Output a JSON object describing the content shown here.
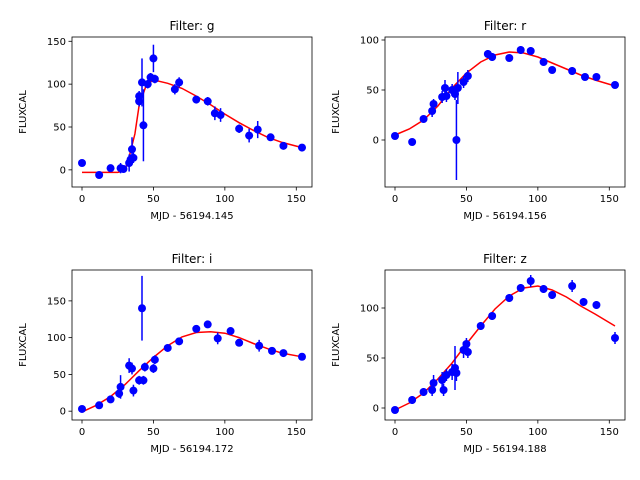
{
  "chart_data": [
    {
      "type": "scatter",
      "title": "Filter: g",
      "xlabel": "MJD - 56194.145",
      "ylabel": "FLUXCAL",
      "xlim": [
        -7,
        161
      ],
      "ylim": [
        -20,
        155
      ],
      "xticks": [
        0,
        50,
        100,
        150
      ],
      "yticks": [
        0,
        50,
        100,
        150
      ],
      "points": [
        {
          "x": 0,
          "y": 8,
          "err": 2
        },
        {
          "x": 12,
          "y": -6,
          "err": 2
        },
        {
          "x": 20,
          "y": 2,
          "err": 2
        },
        {
          "x": 27,
          "y": 2,
          "err": 6
        },
        {
          "x": 29,
          "y": 1,
          "err": 4
        },
        {
          "x": 33,
          "y": 8,
          "err": 10
        },
        {
          "x": 34,
          "y": 12,
          "err": 6
        },
        {
          "x": 35,
          "y": 24,
          "err": 14
        },
        {
          "x": 36,
          "y": 14,
          "err": 6
        },
        {
          "x": 40,
          "y": 86,
          "err": 6
        },
        {
          "x": 40,
          "y": 80,
          "err": 6
        },
        {
          "x": 42,
          "y": 102,
          "err": 28
        },
        {
          "x": 43,
          "y": 52,
          "err": 42
        },
        {
          "x": 46,
          "y": 100,
          "err": 5
        },
        {
          "x": 48,
          "y": 108,
          "err": 5
        },
        {
          "x": 50,
          "y": 130,
          "err": 16
        },
        {
          "x": 51,
          "y": 106,
          "err": 5
        },
        {
          "x": 65,
          "y": 94,
          "err": 6
        },
        {
          "x": 68,
          "y": 102,
          "err": 6
        },
        {
          "x": 80,
          "y": 82,
          "err": 4
        },
        {
          "x": 88,
          "y": 80,
          "err": 5
        },
        {
          "x": 93,
          "y": 66,
          "err": 8
        },
        {
          "x": 97,
          "y": 64,
          "err": 8
        },
        {
          "x": 110,
          "y": 48,
          "err": 5
        },
        {
          "x": 117,
          "y": 40,
          "err": 8
        },
        {
          "x": 123,
          "y": 47,
          "err": 10
        },
        {
          "x": 132,
          "y": 38,
          "err": 3
        },
        {
          "x": 141,
          "y": 28,
          "err": 3
        },
        {
          "x": 154,
          "y": 26,
          "err": 3
        }
      ],
      "fit": [
        [
          0,
          -3
        ],
        [
          25,
          -3
        ],
        [
          30,
          -1
        ],
        [
          33,
          15
        ],
        [
          37,
          42
        ],
        [
          40,
          75
        ],
        [
          45,
          99
        ],
        [
          50,
          105
        ],
        [
          60,
          101
        ],
        [
          70,
          95
        ],
        [
          80,
          86
        ],
        [
          90,
          76
        ],
        [
          100,
          65
        ],
        [
          110,
          55
        ],
        [
          120,
          46
        ],
        [
          130,
          38
        ],
        [
          140,
          32
        ],
        [
          154,
          26
        ]
      ]
    },
    {
      "type": "scatter",
      "title": "Filter: r",
      "xlabel": "MJD - 56194.156",
      "ylabel": "FLUXCAL",
      "xlim": [
        -7,
        161
      ],
      "ylim": [
        -47,
        103
      ],
      "xticks": [
        0,
        50,
        100,
        150
      ],
      "yticks": [
        0,
        50,
        100
      ],
      "points": [
        {
          "x": 0,
          "y": 4,
          "err": 3
        },
        {
          "x": 12,
          "y": -2,
          "err": 2
        },
        {
          "x": 20,
          "y": 21,
          "err": 3
        },
        {
          "x": 26,
          "y": 29,
          "err": 6
        },
        {
          "x": 27,
          "y": 36,
          "err": 5
        },
        {
          "x": 33,
          "y": 43,
          "err": 6
        },
        {
          "x": 35,
          "y": 52,
          "err": 8
        },
        {
          "x": 36,
          "y": 44,
          "err": 6
        },
        {
          "x": 40,
          "y": 50,
          "err": 6
        },
        {
          "x": 42,
          "y": 46,
          "err": 6
        },
        {
          "x": 43,
          "y": 0,
          "err": 40
        },
        {
          "x": 44,
          "y": 52,
          "err": 16
        },
        {
          "x": 48,
          "y": 58,
          "err": 6
        },
        {
          "x": 51,
          "y": 64,
          "err": 6
        },
        {
          "x": 65,
          "y": 86,
          "err": 4
        },
        {
          "x": 68,
          "y": 83,
          "err": 4
        },
        {
          "x": 80,
          "y": 82,
          "err": 3
        },
        {
          "x": 88,
          "y": 90,
          "err": 4
        },
        {
          "x": 95,
          "y": 89,
          "err": 4
        },
        {
          "x": 104,
          "y": 78,
          "err": 3
        },
        {
          "x": 110,
          "y": 70,
          "err": 3
        },
        {
          "x": 124,
          "y": 69,
          "err": 4
        },
        {
          "x": 133,
          "y": 63,
          "err": 3
        },
        {
          "x": 141,
          "y": 63,
          "err": 3
        },
        {
          "x": 154,
          "y": 55,
          "err": 3
        }
      ],
      "fit": [
        [
          0,
          5
        ],
        [
          10,
          11
        ],
        [
          20,
          20
        ],
        [
          30,
          34
        ],
        [
          40,
          52
        ],
        [
          50,
          67
        ],
        [
          60,
          78
        ],
        [
          70,
          85
        ],
        [
          80,
          88
        ],
        [
          90,
          87
        ],
        [
          100,
          83
        ],
        [
          110,
          77
        ],
        [
          120,
          71
        ],
        [
          130,
          65
        ],
        [
          140,
          60
        ],
        [
          154,
          54
        ]
      ]
    },
    {
      "type": "scatter",
      "title": "Filter: i",
      "xlabel": "MJD - 56194.172",
      "ylabel": "FLUXCAL",
      "xlim": [
        -7,
        161
      ],
      "ylim": [
        -12,
        192
      ],
      "xticks": [
        0,
        50,
        100,
        150
      ],
      "yticks": [
        0,
        50,
        100,
        150
      ],
      "points": [
        {
          "x": 0,
          "y": 3,
          "err": 3
        },
        {
          "x": 12,
          "y": 8,
          "err": 3
        },
        {
          "x": 20,
          "y": 16,
          "err": 3
        },
        {
          "x": 26,
          "y": 24,
          "err": 6
        },
        {
          "x": 27,
          "y": 33,
          "err": 16
        },
        {
          "x": 33,
          "y": 62,
          "err": 10
        },
        {
          "x": 35,
          "y": 58,
          "err": 8
        },
        {
          "x": 36,
          "y": 28,
          "err": 8
        },
        {
          "x": 40,
          "y": 42,
          "err": 6
        },
        {
          "x": 42,
          "y": 140,
          "err": 44
        },
        {
          "x": 43,
          "y": 42,
          "err": 6
        },
        {
          "x": 44,
          "y": 60,
          "err": 6
        },
        {
          "x": 50,
          "y": 58,
          "err": 6
        },
        {
          "x": 51,
          "y": 70,
          "err": 6
        },
        {
          "x": 60,
          "y": 86,
          "err": 4
        },
        {
          "x": 68,
          "y": 95,
          "err": 4
        },
        {
          "x": 80,
          "y": 112,
          "err": 4
        },
        {
          "x": 88,
          "y": 118,
          "err": 4
        },
        {
          "x": 95,
          "y": 99,
          "err": 8
        },
        {
          "x": 104,
          "y": 109,
          "err": 4
        },
        {
          "x": 110,
          "y": 93,
          "err": 4
        },
        {
          "x": 124,
          "y": 89,
          "err": 8
        },
        {
          "x": 133,
          "y": 82,
          "err": 4
        },
        {
          "x": 141,
          "y": 79,
          "err": 4
        },
        {
          "x": 154,
          "y": 74,
          "err": 4
        }
      ],
      "fit": [
        [
          0,
          -1
        ],
        [
          10,
          8
        ],
        [
          20,
          20
        ],
        [
          30,
          36
        ],
        [
          40,
          55
        ],
        [
          50,
          73
        ],
        [
          60,
          89
        ],
        [
          70,
          101
        ],
        [
          80,
          107
        ],
        [
          90,
          108
        ],
        [
          100,
          106
        ],
        [
          110,
          100
        ],
        [
          120,
          92
        ],
        [
          130,
          85
        ],
        [
          140,
          79
        ],
        [
          154,
          74
        ]
      ]
    },
    {
      "type": "scatter",
      "title": "Filter: z",
      "xlabel": "MJD - 56194.188",
      "ylabel": "FLUXCAL",
      "xlim": [
        -7,
        161
      ],
      "ylim": [
        -12,
        138
      ],
      "xticks": [
        0,
        50,
        100,
        150
      ],
      "yticks": [
        0,
        50,
        100
      ],
      "points": [
        {
          "x": 0,
          "y": -2,
          "err": 2
        },
        {
          "x": 12,
          "y": 8,
          "err": 4
        },
        {
          "x": 20,
          "y": 16,
          "err": 4
        },
        {
          "x": 26,
          "y": 18,
          "err": 6
        },
        {
          "x": 27,
          "y": 25,
          "err": 8
        },
        {
          "x": 33,
          "y": 28,
          "err": 8
        },
        {
          "x": 34,
          "y": 18,
          "err": 6
        },
        {
          "x": 36,
          "y": 33,
          "err": 6
        },
        {
          "x": 40,
          "y": 36,
          "err": 8
        },
        {
          "x": 42,
          "y": 40,
          "err": 22
        },
        {
          "x": 43,
          "y": 35,
          "err": 8
        },
        {
          "x": 48,
          "y": 58,
          "err": 8
        },
        {
          "x": 50,
          "y": 64,
          "err": 6
        },
        {
          "x": 51,
          "y": 56,
          "err": 6
        },
        {
          "x": 60,
          "y": 82,
          "err": 4
        },
        {
          "x": 68,
          "y": 92,
          "err": 4
        },
        {
          "x": 80,
          "y": 110,
          "err": 4
        },
        {
          "x": 88,
          "y": 120,
          "err": 4
        },
        {
          "x": 95,
          "y": 127,
          "err": 6
        },
        {
          "x": 104,
          "y": 119,
          "err": 4
        },
        {
          "x": 110,
          "y": 113,
          "err": 4
        },
        {
          "x": 124,
          "y": 122,
          "err": 6
        },
        {
          "x": 132,
          "y": 106,
          "err": 4
        },
        {
          "x": 141,
          "y": 103,
          "err": 4
        },
        {
          "x": 154,
          "y": 70,
          "err": 6
        }
      ],
      "fit": [
        [
          0,
          -2
        ],
        [
          10,
          5
        ],
        [
          20,
          15
        ],
        [
          30,
          29
        ],
        [
          40,
          45
        ],
        [
          50,
          64
        ],
        [
          60,
          82
        ],
        [
          70,
          99
        ],
        [
          80,
          112
        ],
        [
          90,
          120
        ],
        [
          100,
          122
        ],
        [
          110,
          118
        ],
        [
          120,
          111
        ],
        [
          130,
          102
        ],
        [
          140,
          94
        ],
        [
          154,
          82
        ]
      ]
    }
  ]
}
